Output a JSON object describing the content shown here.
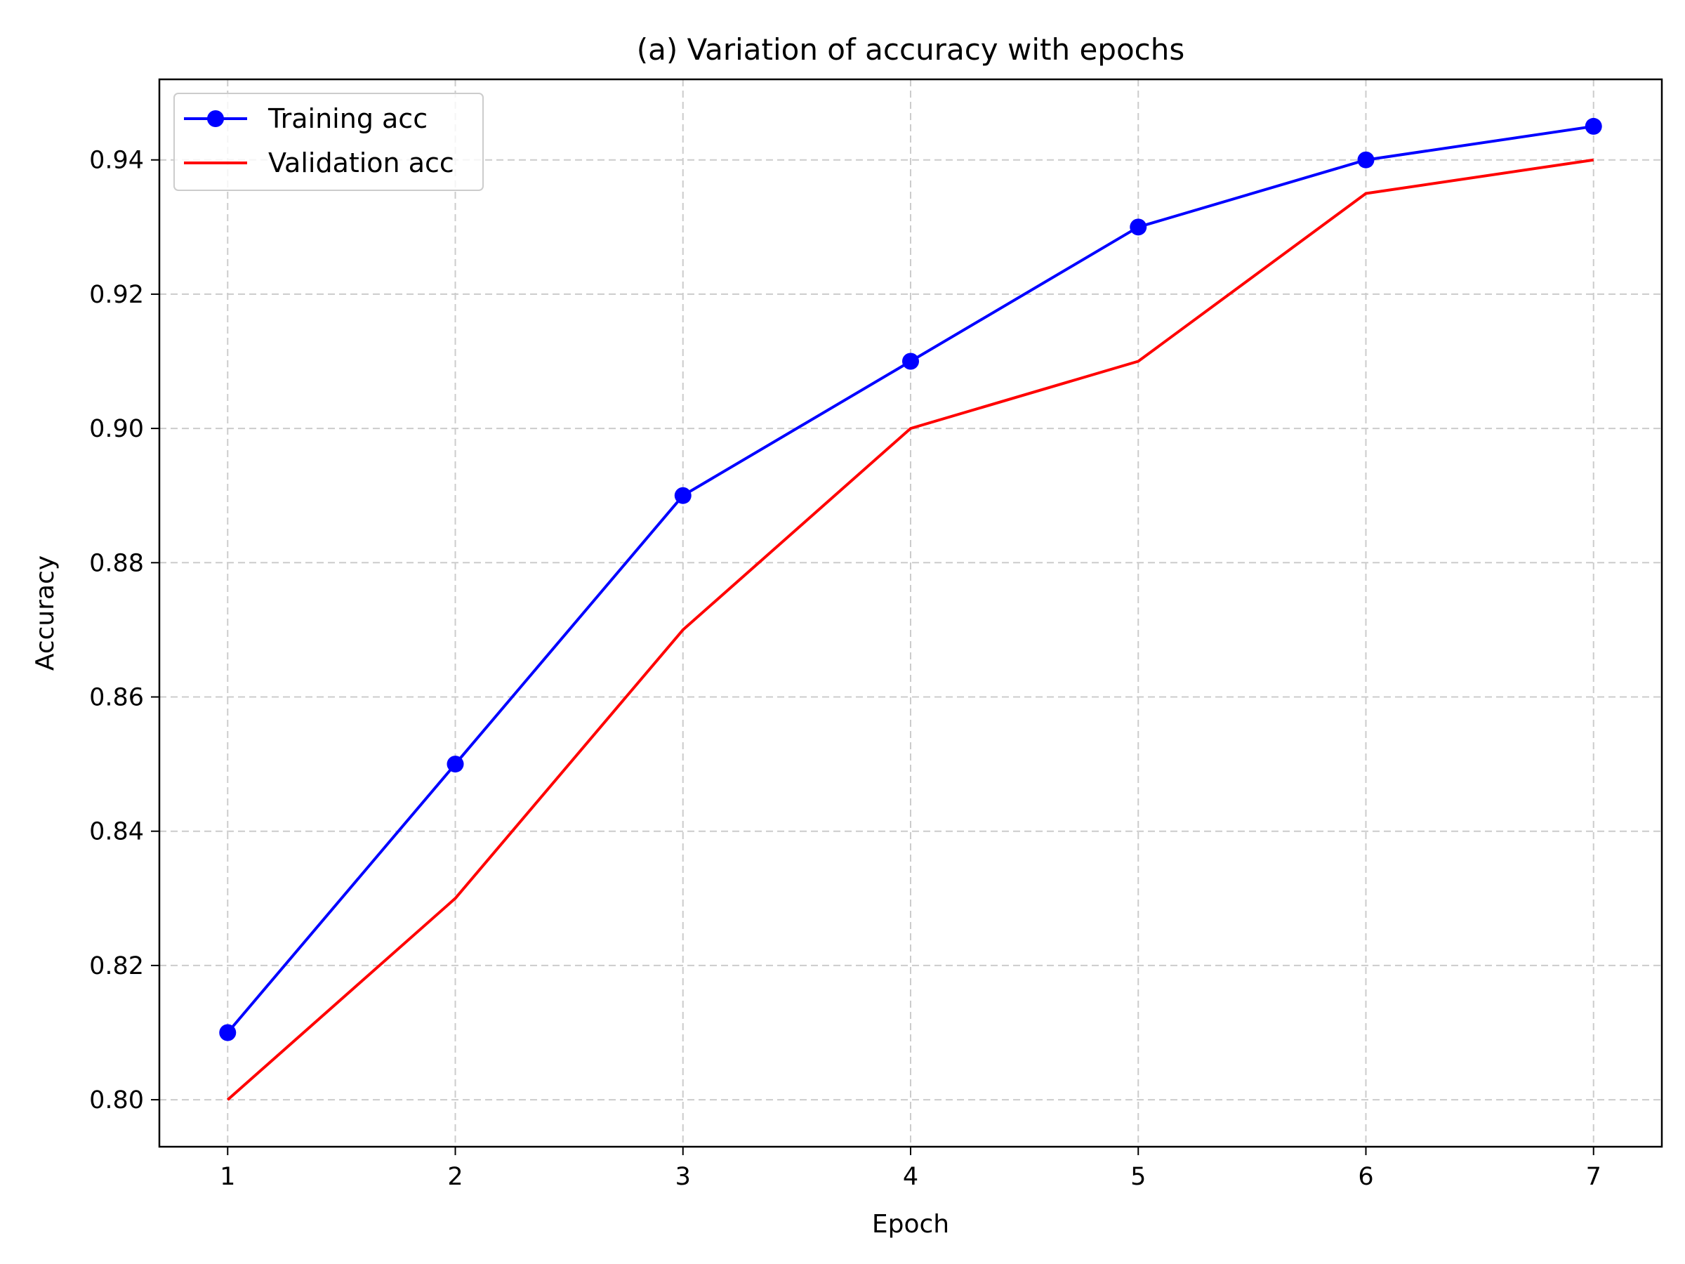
{
  "chart_data": {
    "type": "line",
    "title": "(a) Variation of accuracy with epochs",
    "xlabel": "Epoch",
    "ylabel": "Accuracy",
    "x": [
      1,
      2,
      3,
      4,
      5,
      6,
      7
    ],
    "xlim": [
      0.7,
      7.3
    ],
    "ylim": [
      0.793,
      0.952
    ],
    "xticks": [
      1,
      2,
      3,
      4,
      5,
      6,
      7
    ],
    "yticks": [
      0.8,
      0.82,
      0.84,
      0.86,
      0.88,
      0.9,
      0.92,
      0.94
    ],
    "ytick_labels": [
      "0.80",
      "0.82",
      "0.84",
      "0.86",
      "0.88",
      "0.90",
      "0.92",
      "0.94"
    ],
    "grid": true,
    "legend_position": "upper-left",
    "series": [
      {
        "name": "Training acc",
        "values": [
          0.81,
          0.85,
          0.89,
          0.91,
          0.93,
          0.94,
          0.945
        ],
        "color": "#0000ff",
        "marker": "circle"
      },
      {
        "name": "Validation acc",
        "values": [
          0.8,
          0.83,
          0.87,
          0.9,
          0.91,
          0.935,
          0.94
        ],
        "color": "#ff0000",
        "marker": "none"
      }
    ]
  }
}
